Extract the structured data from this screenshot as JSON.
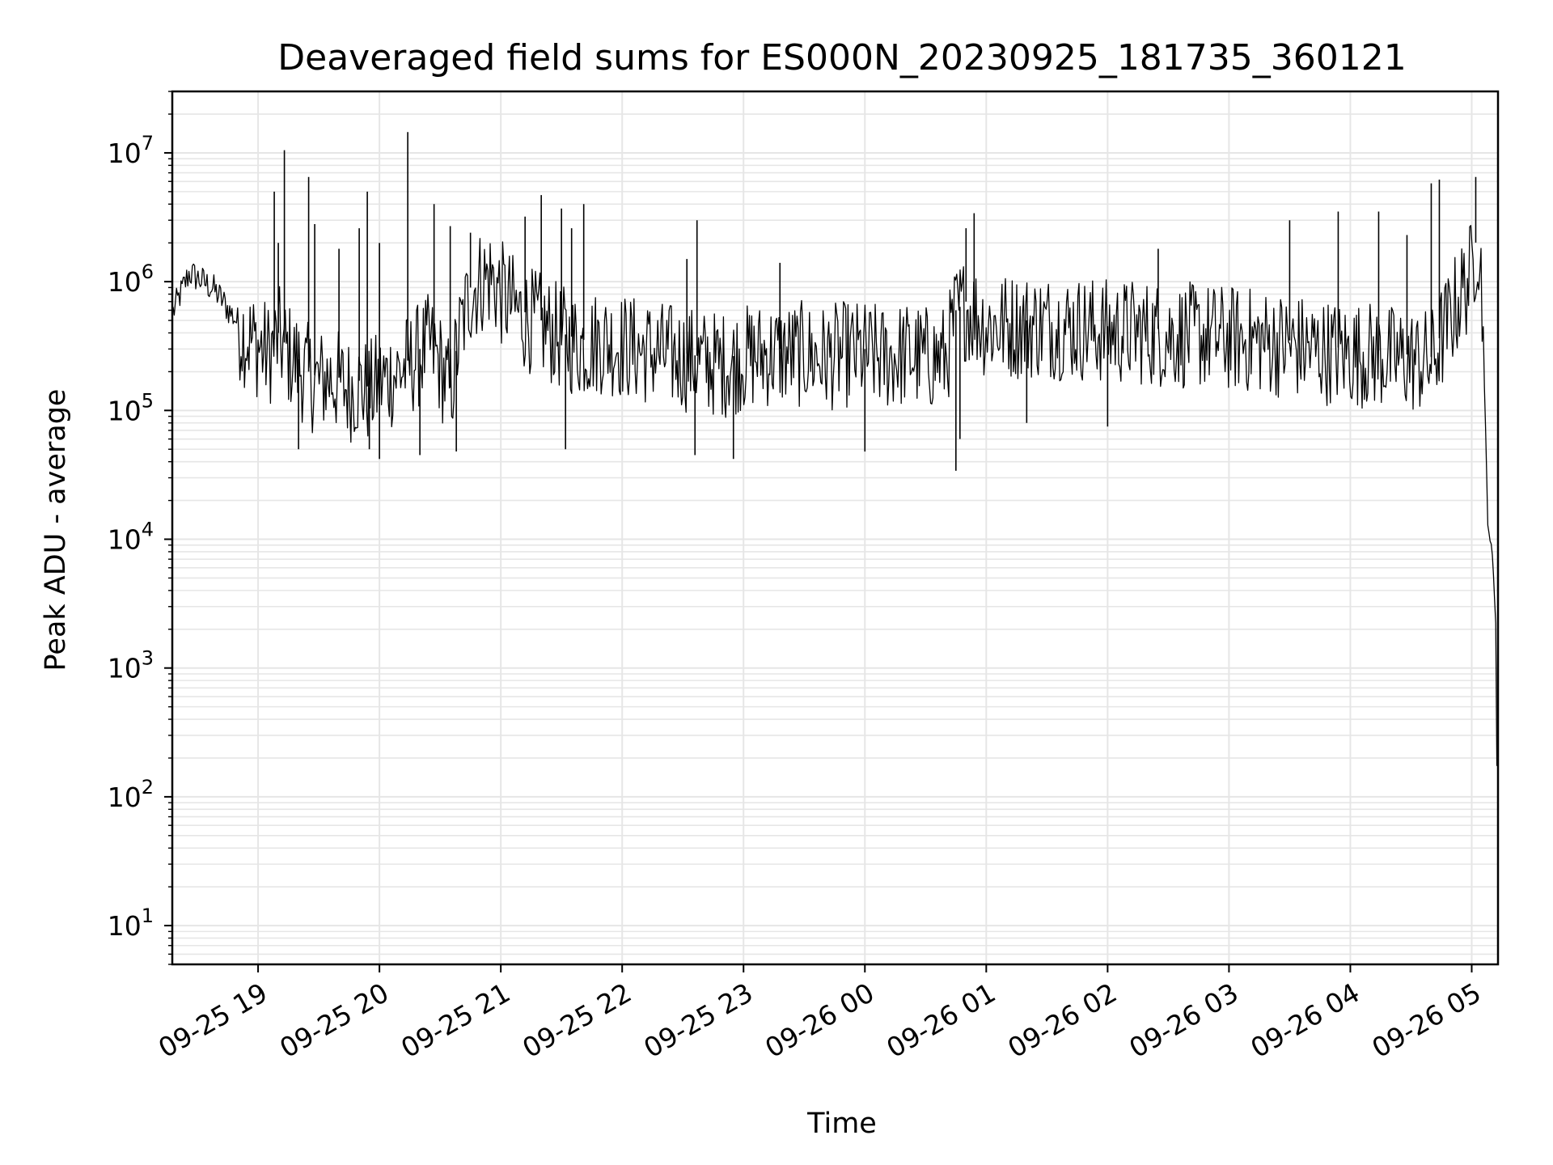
{
  "chart_data": {
    "type": "line",
    "title": "Deaveraged field sums for ES000N_20230925_181735_360121",
    "xlabel": "Time",
    "ylabel": "Peak ADU - average",
    "yscale": "log",
    "ylim": [
      5,
      30000000
    ],
    "xlim": [
      "2023-09-25 18:17:35",
      "2023-09-26 05:13:00"
    ],
    "grid": true,
    "legend": "none",
    "line_color": "#000000",
    "grid_color": "#e6e6e6",
    "x_ticks": [
      {
        "t": "2023-09-25 19:00",
        "label": "09-25 19"
      },
      {
        "t": "2023-09-25 20:00",
        "label": "09-25 20"
      },
      {
        "t": "2023-09-25 21:00",
        "label": "09-25 21"
      },
      {
        "t": "2023-09-25 22:00",
        "label": "09-25 22"
      },
      {
        "t": "2023-09-25 23:00",
        "label": "09-25 23"
      },
      {
        "t": "2023-09-26 00:00",
        "label": "09-26 00"
      },
      {
        "t": "2023-09-26 01:00",
        "label": "09-26 01"
      },
      {
        "t": "2023-09-26 02:00",
        "label": "09-26 02"
      },
      {
        "t": "2023-09-26 03:00",
        "label": "09-26 03"
      },
      {
        "t": "2023-09-26 04:00",
        "label": "09-26 04"
      },
      {
        "t": "2023-09-26 05:00",
        "label": "09-26 05"
      }
    ],
    "y_ticks": [
      {
        "value": 10,
        "base": "10",
        "exp": "1"
      },
      {
        "value": 100,
        "base": "10",
        "exp": "2"
      },
      {
        "value": 1000,
        "base": "10",
        "exp": "3"
      },
      {
        "value": 10000,
        "base": "10",
        "exp": "4"
      },
      {
        "value": 100000,
        "base": "10",
        "exp": "5"
      },
      {
        "value": 1000000,
        "base": "10",
        "exp": "6"
      },
      {
        "value": 10000000,
        "base": "10",
        "exp": "7"
      }
    ],
    "series": [
      {
        "points": [
          [
            "2023-09-25 18:18",
            600000
          ],
          [
            "2023-09-25 18:22",
            850000
          ],
          [
            "2023-09-25 18:26",
            1200000
          ],
          [
            "2023-09-25 18:30",
            1100000
          ],
          [
            "2023-09-25 18:34",
            1000000
          ],
          [
            "2023-09-25 18:38",
            900000
          ],
          [
            "2023-09-25 18:42",
            750000
          ],
          [
            "2023-09-25 18:46",
            600000
          ],
          [
            "2023-09-25 18:50",
            500000
          ],
          [
            "2023-09-25 18:55",
            400000
          ],
          [
            "2023-09-25 19:00",
            350000
          ],
          [
            "2023-09-25 19:05",
            300000
          ],
          [
            "2023-09-25 19:10",
            400000
          ],
          [
            "2023-09-25 19:15",
            300000
          ],
          [
            "2023-09-25 19:20",
            250000
          ],
          [
            "2023-09-25 19:25",
            200000
          ],
          [
            "2023-09-25 19:30",
            180000
          ],
          [
            "2023-09-25 19:35",
            200000
          ],
          [
            "2023-09-25 19:40",
            180000
          ],
          [
            "2023-09-25 19:45",
            160000
          ],
          [
            "2023-09-25 19:50",
            170000
          ],
          [
            "2023-09-25 19:55",
            150000
          ],
          [
            "2023-09-25 20:00",
            180000
          ],
          [
            "2023-09-25 20:05",
            200000
          ],
          [
            "2023-09-25 20:10",
            220000
          ],
          [
            "2023-09-25 20:15",
            250000
          ],
          [
            "2023-09-25 20:20",
            300000
          ],
          [
            "2023-09-25 20:25",
            350000
          ],
          [
            "2023-09-25 20:30",
            250000
          ],
          [
            "2023-09-25 20:35",
            150000
          ],
          [
            "2023-09-25 20:40",
            450000
          ],
          [
            "2023-09-25 20:45",
            900000
          ],
          [
            "2023-09-25 20:50",
            1100000
          ],
          [
            "2023-09-25 20:55",
            1200000
          ],
          [
            "2023-09-25 21:00",
            900000
          ],
          [
            "2023-09-25 21:10",
            600000
          ],
          [
            "2023-09-25 21:20",
            500000
          ],
          [
            "2023-09-25 21:30",
            400000
          ],
          [
            "2023-09-25 21:40",
            350000
          ],
          [
            "2023-09-25 21:50",
            380000
          ],
          [
            "2023-09-25 22:00",
            350000
          ],
          [
            "2023-09-25 22:10",
            320000
          ],
          [
            "2023-09-25 22:20",
            300000
          ],
          [
            "2023-09-25 22:30",
            280000
          ],
          [
            "2023-09-25 22:40",
            260000
          ],
          [
            "2023-09-25 22:50",
            250000
          ],
          [
            "2023-09-25 23:00",
            280000
          ],
          [
            "2023-09-25 23:10",
            300000
          ],
          [
            "2023-09-25 23:20",
            300000
          ],
          [
            "2023-09-25 23:30",
            300000
          ],
          [
            "2023-09-25 23:40",
            280000
          ],
          [
            "2023-09-25 23:50",
            300000
          ],
          [
            "2023-09-26 00:00",
            300000
          ],
          [
            "2023-09-26 00:10",
            280000
          ],
          [
            "2023-09-26 00:20",
            300000
          ],
          [
            "2023-09-26 00:30",
            280000
          ],
          [
            "2023-09-26 00:40",
            280000
          ],
          [
            "2023-09-26 00:45",
            600000
          ],
          [
            "2023-09-26 00:50",
            700000
          ],
          [
            "2023-09-26 01:00",
            500000
          ],
          [
            "2023-09-26 01:15",
            500000
          ],
          [
            "2023-09-26 01:30",
            500000
          ],
          [
            "2023-09-26 01:45",
            480000
          ],
          [
            "2023-09-26 02:00",
            450000
          ],
          [
            "2023-09-26 02:15",
            450000
          ],
          [
            "2023-09-26 02:30",
            420000
          ],
          [
            "2023-09-26 02:45",
            420000
          ],
          [
            "2023-09-26 03:00",
            400000
          ],
          [
            "2023-09-26 03:15",
            380000
          ],
          [
            "2023-09-26 03:30",
            350000
          ],
          [
            "2023-09-26 03:45",
            320000
          ],
          [
            "2023-09-26 04:00",
            300000
          ],
          [
            "2023-09-26 04:10",
            300000
          ],
          [
            "2023-09-26 04:20",
            280000
          ],
          [
            "2023-09-26 04:30",
            270000
          ],
          [
            "2023-09-26 04:40",
            260000
          ],
          [
            "2023-09-26 04:50",
            600000
          ],
          [
            "2023-09-26 04:55",
            900000
          ],
          [
            "2023-09-26 05:00",
            1300000
          ],
          [
            "2023-09-26 05:03",
            2500000
          ],
          [
            "2023-09-26 05:05",
            1000000
          ],
          [
            "2023-09-26 05:07",
            60000
          ],
          [
            "2023-09-26 05:08",
            12000
          ],
          [
            "2023-09-26 05:10",
            9000
          ],
          [
            "2023-09-26 05:12",
            2000
          ],
          [
            "2023-09-26 05:13",
            10
          ]
        ],
        "spikes": [
          [
            "2023-09-25 19:08",
            5000000
          ],
          [
            "2023-09-25 19:10",
            2000000
          ],
          [
            "2023-09-25 19:13",
            10500000
          ],
          [
            "2023-09-25 19:25",
            6500000
          ],
          [
            "2023-09-25 19:28",
            2800000
          ],
          [
            "2023-09-25 19:40",
            1800000
          ],
          [
            "2023-09-25 19:50",
            2600000
          ],
          [
            "2023-09-25 19:54",
            5000000
          ],
          [
            "2023-09-25 20:00",
            2000000
          ],
          [
            "2023-09-25 20:14",
            14500000
          ],
          [
            "2023-09-25 20:27",
            4000000
          ],
          [
            "2023-09-25 20:35",
            2700000
          ],
          [
            "2023-09-25 20:45",
            2400000
          ],
          [
            "2023-09-25 21:12",
            3200000
          ],
          [
            "2023-09-25 21:20",
            4700000
          ],
          [
            "2023-09-25 21:30",
            3700000
          ],
          [
            "2023-09-25 21:35",
            2600000
          ],
          [
            "2023-09-25 21:41",
            4000000
          ],
          [
            "2023-09-25 22:37",
            3000000
          ],
          [
            "2023-09-25 22:32",
            1500000
          ],
          [
            "2023-09-25 23:18",
            1400000
          ],
          [
            "2023-09-26 00:50",
            2600000
          ],
          [
            "2023-09-26 00:54",
            3400000
          ],
          [
            "2023-09-26 02:25",
            1800000
          ],
          [
            "2023-09-26 03:30",
            3000000
          ],
          [
            "2023-09-26 03:54",
            3500000
          ],
          [
            "2023-09-26 04:14",
            3500000
          ],
          [
            "2023-09-26 04:28",
            2300000
          ],
          [
            "2023-09-26 04:40",
            5800000
          ],
          [
            "2023-09-26 04:44",
            6200000
          ],
          [
            "2023-09-26 05:02",
            6500000
          ]
        ],
        "dips": [
          [
            "2023-09-25 19:20",
            50000
          ],
          [
            "2023-09-25 19:55",
            50000
          ],
          [
            "2023-09-25 20:00",
            42000
          ],
          [
            "2023-09-25 20:20",
            45000
          ],
          [
            "2023-09-25 20:38",
            48000
          ],
          [
            "2023-09-25 21:32",
            50000
          ],
          [
            "2023-09-25 22:36",
            45000
          ],
          [
            "2023-09-25 22:55",
            42000
          ],
          [
            "2023-09-26 00:00",
            48000
          ],
          [
            "2023-09-26 00:45",
            34000
          ],
          [
            "2023-09-26 00:47",
            60000
          ],
          [
            "2023-09-26 01:20",
            80000
          ],
          [
            "2023-09-26 02:00",
            75000
          ]
        ]
      }
    ]
  }
}
